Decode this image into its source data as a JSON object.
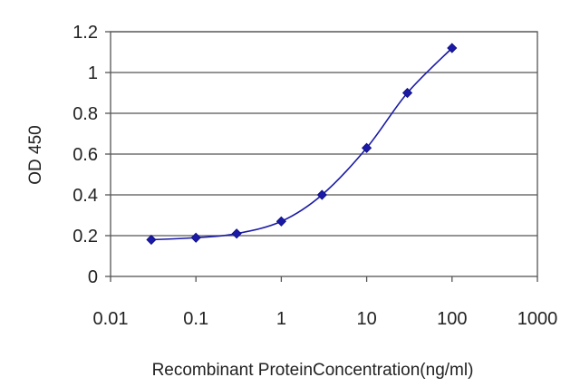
{
  "chart_data": {
    "type": "line",
    "title": "",
    "xlabel": "Recombinant ProteinConcentration(ng/ml)",
    "ylabel": "OD 450",
    "xscale": "log",
    "xlim": [
      0.01,
      1000
    ],
    "ylim": [
      0,
      1.2
    ],
    "x_ticks": [
      0.01,
      0.1,
      1,
      10,
      100,
      1000
    ],
    "x_tick_labels": [
      "0.01",
      "0.1",
      "1",
      "10",
      "100",
      "1000"
    ],
    "y_ticks": [
      0,
      0.2,
      0.4,
      0.6,
      0.8,
      1,
      1.2
    ],
    "y_tick_labels": [
      "0",
      "0.2",
      "0.4",
      "0.6",
      "0.8",
      "1",
      "1.2"
    ],
    "grid": "horizontal",
    "legend": "none",
    "series": [
      {
        "color": "#1a1aa6",
        "marker": "diamond",
        "x": [
          0.03,
          0.1,
          0.3,
          1,
          3,
          10,
          30,
          100
        ],
        "y": [
          0.18,
          0.19,
          0.21,
          0.27,
          0.4,
          0.63,
          0.9,
          1.12
        ]
      }
    ]
  }
}
